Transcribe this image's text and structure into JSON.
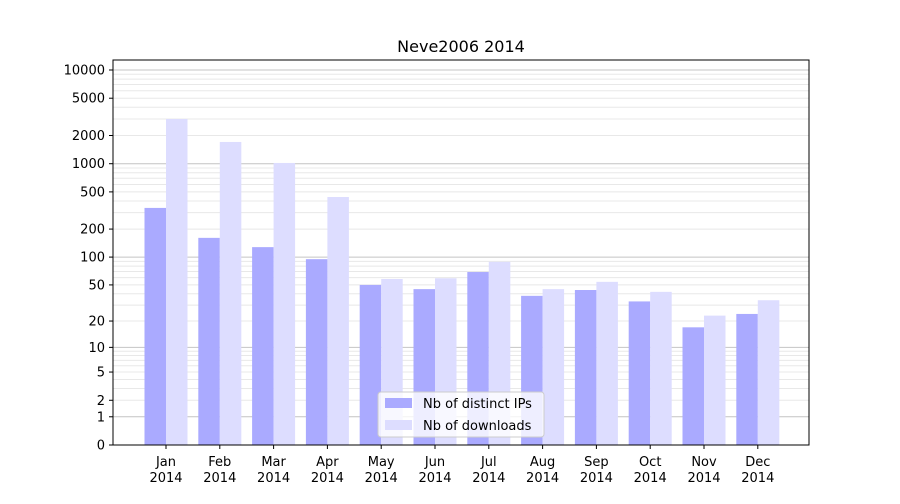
{
  "chart_data": {
    "type": "bar",
    "title": "Neve2006 2014",
    "xlabel": "",
    "ylabel": "",
    "y_scale": "symlog (log10(1+y))",
    "ylim": [
      0,
      10000
    ],
    "y_ticks": [
      0,
      1,
      2,
      5,
      10,
      20,
      50,
      100,
      200,
      500,
      1000,
      2000,
      5000,
      10000
    ],
    "grid": true,
    "legend_position": "bottom-center",
    "categories": [
      [
        "Jan",
        "2014"
      ],
      [
        "Feb",
        "2014"
      ],
      [
        "Mar",
        "2014"
      ],
      [
        "Apr",
        "2014"
      ],
      [
        "May",
        "2014"
      ],
      [
        "Jun",
        "2014"
      ],
      [
        "Jul",
        "2014"
      ],
      [
        "Aug",
        "2014"
      ],
      [
        "Sep",
        "2014"
      ],
      [
        "Oct",
        "2014"
      ],
      [
        "Nov",
        "2014"
      ],
      [
        "Dec",
        "2014"
      ]
    ],
    "series": [
      {
        "name": "Nb of distinct IPs",
        "color": "#aaaaff",
        "values": [
          337,
          161,
          128,
          95,
          50,
          45,
          69,
          38,
          44,
          33,
          17,
          24
        ]
      },
      {
        "name": "Nb of downloads",
        "color": "#ddddff",
        "values": [
          3000,
          1706,
          1018,
          441,
          58,
          59,
          89,
          45,
          54,
          42,
          23,
          34
        ]
      }
    ]
  }
}
